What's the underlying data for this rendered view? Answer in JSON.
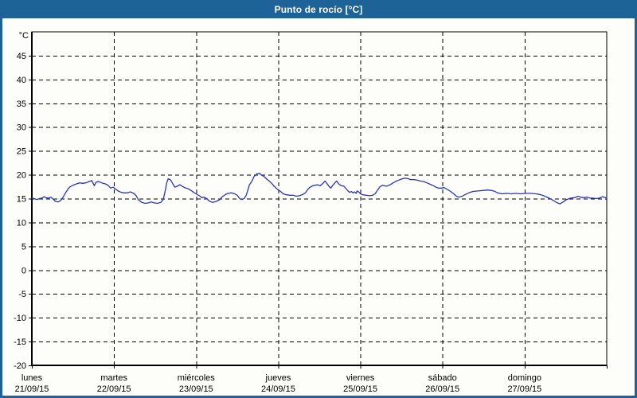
{
  "window": {
    "title": "Punto de rocío [°C]"
  },
  "colors": {
    "titlebar_bg": "#1d6398",
    "window_border": "#1d6398",
    "title_text": "#ffffff",
    "chart_bg": "#fdfdfa",
    "grid": "#000000",
    "axis": "#000000",
    "tick_label": "#000000",
    "line": "#2838be"
  },
  "chart_data": {
    "type": "line",
    "title": "Punto de rocío [°C]",
    "ylabel": "°C",
    "ylim": [
      -20,
      50
    ],
    "ytick_step": 5,
    "grid": "dashed",
    "legend": "none",
    "x_unit": "days since 21/09/15",
    "x_range": [
      0,
      7
    ],
    "x_labels": [
      {
        "day": "lunes",
        "date": "21/09/15"
      },
      {
        "day": "martes",
        "date": "22/09/15"
      },
      {
        "day": "miércoles",
        "date": "23/09/15"
      },
      {
        "day": "jueves",
        "date": "24/09/15"
      },
      {
        "day": "viernes",
        "date": "25/09/15"
      },
      {
        "day": "sábado",
        "date": "26/09/15"
      },
      {
        "day": "domingo",
        "date": "27/09/15"
      }
    ],
    "series": [
      {
        "name": "Punto de rocío",
        "color": "#2838be",
        "points": [
          [
            0.0,
            15.1
          ],
          [
            0.03,
            15.0
          ],
          [
            0.06,
            14.8
          ],
          [
            0.09,
            15.0
          ],
          [
            0.12,
            15.1
          ],
          [
            0.15,
            15.4
          ],
          [
            0.17,
            15.2
          ],
          [
            0.2,
            15.1
          ],
          [
            0.23,
            15.3
          ],
          [
            0.26,
            14.9
          ],
          [
            0.29,
            14.4
          ],
          [
            0.32,
            14.3
          ],
          [
            0.35,
            14.6
          ],
          [
            0.38,
            15.3
          ],
          [
            0.41,
            16.2
          ],
          [
            0.44,
            17.0
          ],
          [
            0.46,
            17.4
          ],
          [
            0.49,
            17.7
          ],
          [
            0.53,
            18.0
          ],
          [
            0.58,
            18.3
          ],
          [
            0.62,
            18.2
          ],
          [
            0.66,
            18.3
          ],
          [
            0.7,
            18.6
          ],
          [
            0.73,
            18.8
          ],
          [
            0.76,
            17.7
          ],
          [
            0.78,
            18.4
          ],
          [
            0.81,
            18.6
          ],
          [
            0.85,
            18.3
          ],
          [
            0.89,
            18.1
          ],
          [
            0.92,
            17.9
          ],
          [
            0.96,
            17.2
          ],
          [
            0.99,
            17.4
          ],
          [
            1.02,
            17.0
          ],
          [
            1.05,
            16.6
          ],
          [
            1.09,
            16.3
          ],
          [
            1.12,
            16.2
          ],
          [
            1.16,
            16.2
          ],
          [
            1.2,
            16.4
          ],
          [
            1.24,
            16.1
          ],
          [
            1.27,
            15.6
          ],
          [
            1.3,
            14.7
          ],
          [
            1.34,
            14.2
          ],
          [
            1.38,
            14.0
          ],
          [
            1.42,
            14.1
          ],
          [
            1.45,
            14.3
          ],
          [
            1.49,
            14.1
          ],
          [
            1.53,
            14.0
          ],
          [
            1.57,
            14.2
          ],
          [
            1.6,
            14.8
          ],
          [
            1.62,
            16.3
          ],
          [
            1.64,
            18.2
          ],
          [
            1.66,
            19.2
          ],
          [
            1.69,
            18.9
          ],
          [
            1.72,
            18.0
          ],
          [
            1.74,
            17.4
          ],
          [
            1.77,
            17.6
          ],
          [
            1.8,
            17.9
          ],
          [
            1.83,
            17.6
          ],
          [
            1.86,
            17.3
          ],
          [
            1.9,
            17.1
          ],
          [
            1.94,
            16.7
          ],
          [
            1.97,
            16.3
          ],
          [
            2.0,
            16.0
          ],
          [
            2.04,
            15.6
          ],
          [
            2.07,
            15.2
          ],
          [
            2.1,
            15.3
          ],
          [
            2.13,
            15.0
          ],
          [
            2.16,
            14.5
          ],
          [
            2.2,
            14.2
          ],
          [
            2.24,
            14.4
          ],
          [
            2.28,
            14.7
          ],
          [
            2.32,
            15.4
          ],
          [
            2.36,
            15.9
          ],
          [
            2.39,
            16.1
          ],
          [
            2.43,
            16.2
          ],
          [
            2.47,
            16.0
          ],
          [
            2.5,
            15.7
          ],
          [
            2.53,
            15.0
          ],
          [
            2.56,
            14.8
          ],
          [
            2.59,
            15.1
          ],
          [
            2.61,
            15.7
          ],
          [
            2.63,
            16.8
          ],
          [
            2.65,
            17.9
          ],
          [
            2.67,
            18.4
          ],
          [
            2.69,
            19.0
          ],
          [
            2.7,
            19.5
          ],
          [
            2.72,
            19.9
          ],
          [
            2.74,
            20.2
          ],
          [
            2.77,
            20.3
          ],
          [
            2.8,
            19.9
          ],
          [
            2.83,
            19.6
          ],
          [
            2.86,
            19.1
          ],
          [
            2.89,
            18.7
          ],
          [
            2.92,
            18.2
          ],
          [
            2.95,
            17.6
          ],
          [
            2.98,
            17.1
          ],
          [
            3.0,
            16.8
          ],
          [
            3.03,
            16.5
          ],
          [
            3.06,
            16.0
          ],
          [
            3.1,
            15.8
          ],
          [
            3.14,
            15.7
          ],
          [
            3.18,
            15.7
          ],
          [
            3.22,
            15.5
          ],
          [
            3.26,
            15.6
          ],
          [
            3.3,
            15.9
          ],
          [
            3.33,
            16.2
          ],
          [
            3.35,
            16.7
          ],
          [
            3.38,
            17.3
          ],
          [
            3.42,
            17.7
          ],
          [
            3.45,
            17.8
          ],
          [
            3.48,
            17.9
          ],
          [
            3.51,
            17.7
          ],
          [
            3.54,
            18.1
          ],
          [
            3.57,
            18.7
          ],
          [
            3.6,
            18.0
          ],
          [
            3.62,
            17.5
          ],
          [
            3.64,
            17.2
          ],
          [
            3.66,
            17.7
          ],
          [
            3.69,
            18.3
          ],
          [
            3.71,
            18.7
          ],
          [
            3.74,
            18.0
          ],
          [
            3.77,
            17.7
          ],
          [
            3.8,
            17.6
          ],
          [
            3.83,
            17.0
          ],
          [
            3.85,
            16.6
          ],
          [
            3.87,
            16.3
          ],
          [
            3.89,
            16.5
          ],
          [
            3.91,
            16.2
          ],
          [
            3.93,
            16.4
          ],
          [
            3.95,
            16.1
          ],
          [
            3.96,
            16.6
          ],
          [
            3.98,
            16.4
          ],
          [
            4.0,
            16.0
          ],
          [
            4.03,
            15.8
          ],
          [
            4.07,
            15.7
          ],
          [
            4.11,
            15.6
          ],
          [
            4.15,
            15.7
          ],
          [
            4.18,
            16.0
          ],
          [
            4.21,
            16.8
          ],
          [
            4.24,
            17.5
          ],
          [
            4.27,
            17.8
          ],
          [
            4.29,
            17.7
          ],
          [
            4.32,
            17.6
          ],
          [
            4.35,
            17.8
          ],
          [
            4.38,
            18.1
          ],
          [
            4.41,
            18.4
          ],
          [
            4.44,
            18.7
          ],
          [
            4.47,
            18.9
          ],
          [
            4.5,
            19.1
          ],
          [
            4.54,
            19.3
          ],
          [
            4.58,
            19.2
          ],
          [
            4.61,
            19.0
          ],
          [
            4.65,
            19.0
          ],
          [
            4.69,
            18.9
          ],
          [
            4.73,
            18.7
          ],
          [
            4.77,
            18.6
          ],
          [
            4.81,
            18.3
          ],
          [
            4.85,
            18.0
          ],
          [
            4.89,
            17.7
          ],
          [
            4.92,
            17.4
          ],
          [
            4.95,
            17.2
          ],
          [
            4.99,
            17.2
          ],
          [
            5.02,
            17.3
          ],
          [
            5.05,
            17.0
          ],
          [
            5.09,
            16.6
          ],
          [
            5.13,
            16.1
          ],
          [
            5.17,
            15.5
          ],
          [
            5.2,
            15.3
          ],
          [
            5.24,
            15.5
          ],
          [
            5.27,
            15.8
          ],
          [
            5.32,
            16.2
          ],
          [
            5.37,
            16.5
          ],
          [
            5.43,
            16.6
          ],
          [
            5.49,
            16.7
          ],
          [
            5.55,
            16.8
          ],
          [
            5.6,
            16.7
          ],
          [
            5.64,
            16.5
          ],
          [
            5.67,
            16.2
          ],
          [
            5.72,
            16.0
          ],
          [
            5.78,
            16.1
          ],
          [
            5.84,
            16.0
          ],
          [
            5.89,
            16.1
          ],
          [
            5.95,
            16.0
          ],
          [
            6.01,
            16.1
          ],
          [
            6.07,
            16.1
          ],
          [
            6.14,
            16.0
          ],
          [
            6.2,
            15.8
          ],
          [
            6.26,
            15.4
          ],
          [
            6.31,
            15.0
          ],
          [
            6.35,
            14.6
          ],
          [
            6.4,
            14.1
          ],
          [
            6.43,
            13.9
          ],
          [
            6.47,
            14.3
          ],
          [
            6.51,
            14.8
          ],
          [
            6.56,
            15.1
          ],
          [
            6.61,
            15.2
          ],
          [
            6.65,
            15.5
          ],
          [
            6.68,
            15.3
          ],
          [
            6.72,
            15.2
          ],
          [
            6.76,
            15.3
          ],
          [
            6.8,
            15.1
          ],
          [
            6.83,
            15.1
          ],
          [
            6.87,
            15.0
          ],
          [
            6.91,
            15.1
          ],
          [
            6.95,
            15.4
          ],
          [
            6.98,
            15.2
          ],
          [
            7.0,
            15.2
          ]
        ]
      }
    ]
  }
}
